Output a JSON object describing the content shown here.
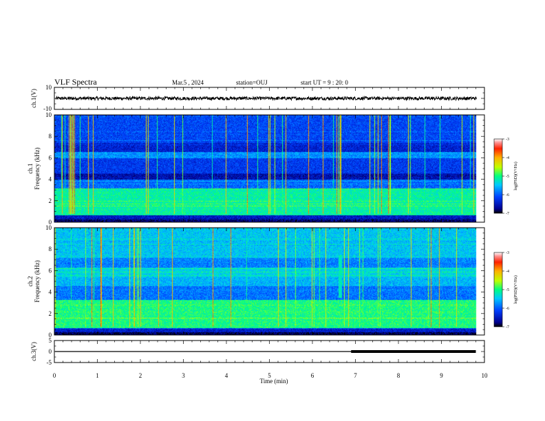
{
  "header": {
    "title": "VLF Spectra",
    "date": "Mar.5 , 2024",
    "station": "station=OUJ",
    "start": "start UT = 9 : 20: 0"
  },
  "chart_data": [
    {
      "type": "line",
      "name": "ch1-waveform",
      "ylabel": "ch.1(V)",
      "ylim": [
        -10,
        10
      ],
      "ytick_labels": [
        "10",
        "-10"
      ],
      "baseline": 0,
      "amplitude": 1.5
    },
    {
      "type": "heatmap",
      "name": "ch1-spectrogram",
      "ylabel_line1": "ch.1",
      "ylabel_line2": "Frequency (kHz)",
      "ylim": [
        0,
        10
      ],
      "ytick_labels": [
        "0",
        "2",
        "4",
        "6",
        "8",
        "10"
      ],
      "colorbar": {
        "label": "log(PSD)(V²/Hz)",
        "range": [
          -7,
          -3
        ],
        "tick_labels": [
          "-3",
          "-4",
          "-5",
          "-6",
          "-7"
        ]
      }
    },
    {
      "type": "heatmap",
      "name": "ch2-spectrogram",
      "ylabel_line1": "ch.2",
      "ylabel_line2": "Frequency (kHz)",
      "ylim": [
        0,
        10
      ],
      "ytick_labels": [
        "0",
        "2",
        "4",
        "6",
        "8",
        "10"
      ],
      "colorbar": {
        "label": "log(PSD)(V²/Hz)",
        "range": [
          -7,
          -3
        ],
        "tick_labels": [
          "-3",
          "-4",
          "-5",
          "-6",
          "-7"
        ]
      }
    },
    {
      "type": "line",
      "name": "ch3-level",
      "ylabel": "ch.3(V)",
      "ylim": [
        -5,
        5
      ],
      "ytick_labels": [
        "5",
        "0",
        "-5"
      ],
      "level": 0,
      "thick_from_min": 6.9,
      "data_end_min": 9.8
    }
  ],
  "xaxis": {
    "label": "Time (min)",
    "range": [
      0,
      10
    ],
    "tick_labels": [
      "0",
      "1",
      "2",
      "3",
      "4",
      "5",
      "6",
      "7",
      "8",
      "9",
      "10"
    ]
  }
}
